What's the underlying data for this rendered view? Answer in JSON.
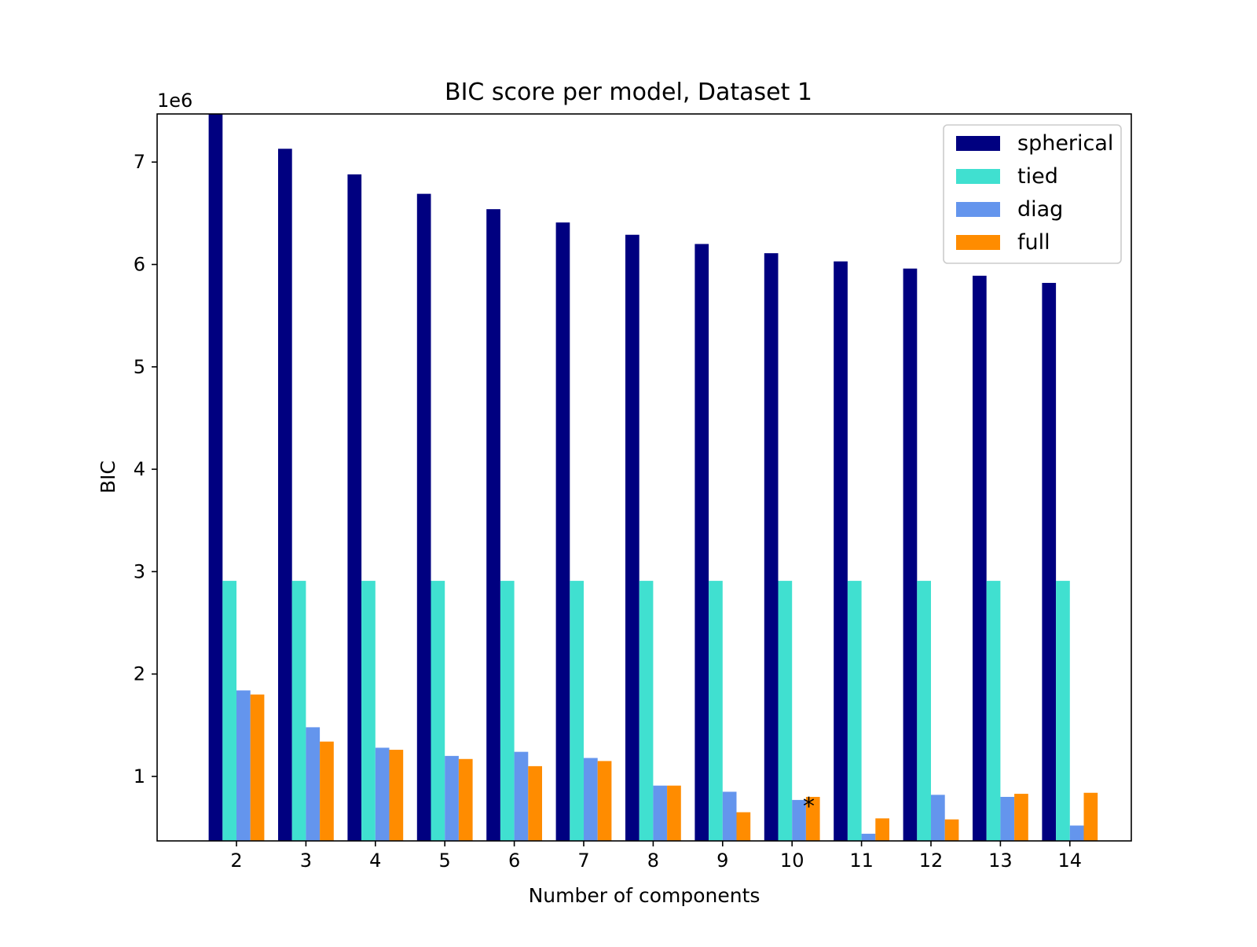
{
  "chart_data": {
    "type": "bar",
    "title": "BIC score per model, Dataset 1",
    "xlabel": "Number of components",
    "ylabel": "BIC",
    "y_offset_label": "1e6",
    "categories": [
      "2",
      "3",
      "4",
      "5",
      "6",
      "7",
      "8",
      "9",
      "10",
      "11",
      "12",
      "13",
      "14"
    ],
    "yticks": [
      1,
      2,
      3,
      4,
      5,
      6,
      7
    ],
    "ylim": [
      0.37,
      7.47
    ],
    "grid": false,
    "legend_position": "top-right",
    "series": [
      {
        "name": "spherical",
        "color": "#000080",
        "values": [
          7.47,
          7.13,
          6.88,
          6.69,
          6.54,
          6.41,
          6.29,
          6.2,
          6.11,
          6.03,
          5.96,
          5.89,
          5.82
        ]
      },
      {
        "name": "tied",
        "color": "#40e0d0",
        "values": [
          2.91,
          2.91,
          2.91,
          2.91,
          2.91,
          2.91,
          2.91,
          2.91,
          2.91,
          2.91,
          2.91,
          2.91,
          2.91
        ]
      },
      {
        "name": "diag",
        "color": "#6495ed",
        "values": [
          1.84,
          1.48,
          1.28,
          1.2,
          1.24,
          1.18,
          0.91,
          0.85,
          0.77,
          0.44,
          0.82,
          0.8,
          0.52
        ]
      },
      {
        "name": "full",
        "color": "#ff8c00",
        "values": [
          1.8,
          1.34,
          1.26,
          1.17,
          1.1,
          1.15,
          0.91,
          0.65,
          0.8,
          0.59,
          0.58,
          0.83,
          0.84
        ]
      }
    ],
    "annotation": {
      "text": "*",
      "category": "10"
    }
  }
}
